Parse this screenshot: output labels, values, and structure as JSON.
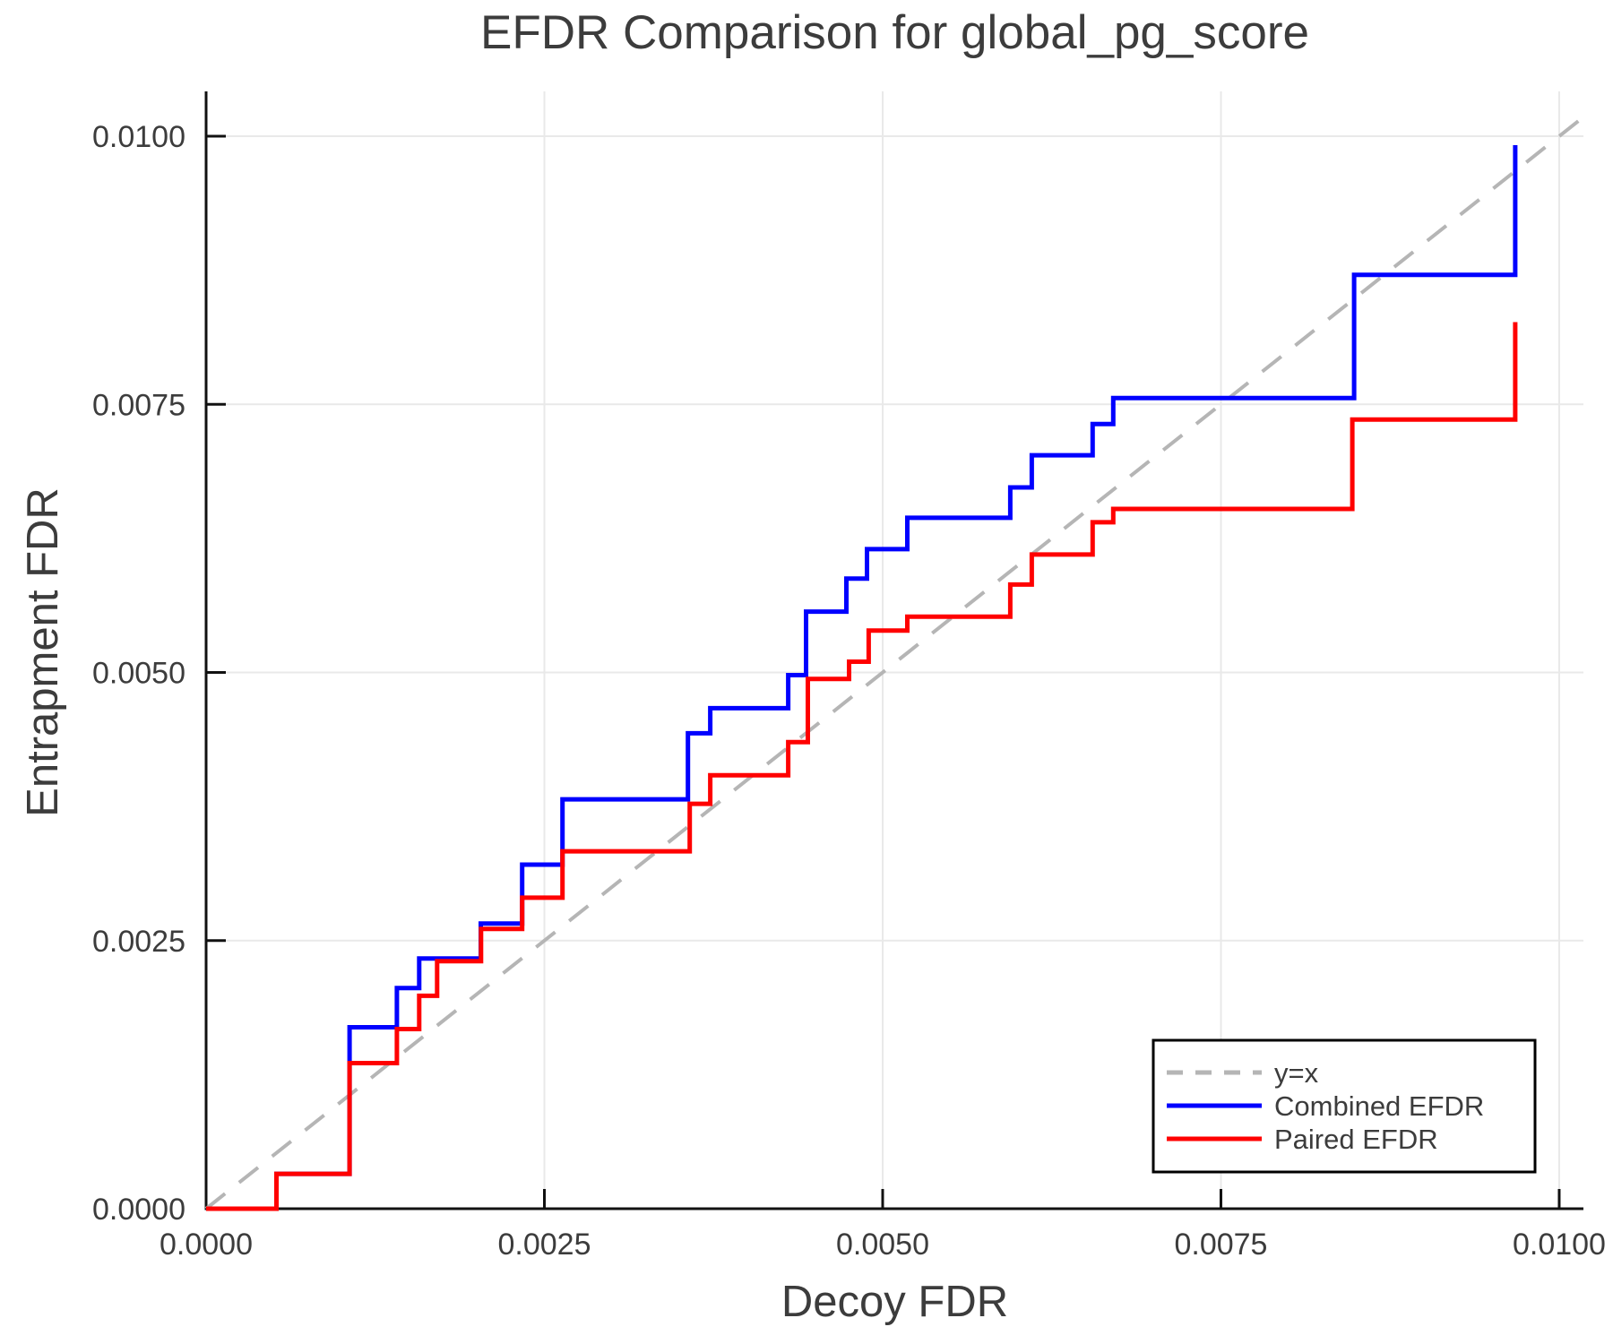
{
  "figure": {
    "title": "EFDR Comparison for global_pg_score",
    "xlabel": "Decoy FDR",
    "ylabel": "Entrapment FDR"
  },
  "chart_data": {
    "type": "line",
    "title": "EFDR Comparison for global_pg_score",
    "xlabel": "Decoy FDR",
    "ylabel": "Entrapment FDR",
    "xlim": [
      0,
      0.010179
    ],
    "ylim": [
      0,
      0.010418
    ],
    "grid": true,
    "legend_position": "bottom-right",
    "x_ticks": [
      0,
      0.0025,
      0.005,
      0.0075,
      0.01
    ],
    "x_tick_labels": [
      "0.0000",
      "0.0025",
      "0.0050",
      "0.0075",
      "0.0100"
    ],
    "y_ticks": [
      0,
      0.0025,
      0.005,
      0.0075,
      0.01
    ],
    "y_tick_labels": [
      "0.0000",
      "0.0025",
      "0.0050",
      "0.0075",
      "0.0100"
    ],
    "series": [
      {
        "name": "y=x",
        "style": "dashed",
        "color": "#b5b5b5",
        "points": [
          [
            0,
            0
          ],
          [
            0.010179,
            0.010179
          ]
        ]
      },
      {
        "name": "Combined EFDR",
        "style": "step",
        "color": "#0000ff",
        "events": [
          [
            0.00052,
            0.000325
          ],
          [
            0.00106,
            0.001692
          ],
          [
            0.00141,
            0.002058
          ],
          [
            0.001575,
            0.002333
          ],
          [
            0.00203,
            0.002658
          ],
          [
            0.002336,
            0.003208
          ],
          [
            0.002634,
            0.003817
          ],
          [
            0.003561,
            0.004433
          ],
          [
            0.003726,
            0.004667
          ],
          [
            0.004302,
            0.004975
          ],
          [
            0.004434,
            0.005567
          ],
          [
            0.004732,
            0.005875
          ],
          [
            0.004884,
            0.00615
          ],
          [
            0.005182,
            0.006442
          ],
          [
            0.005943,
            0.006725
          ],
          [
            0.006102,
            0.007025
          ],
          [
            0.006552,
            0.007317
          ],
          [
            0.006704,
            0.007558
          ],
          [
            0.008484,
            0.008708
          ],
          [
            0.009675,
            0.009917
          ]
        ]
      },
      {
        "name": "Paired EFDR",
        "style": "step",
        "color": "#ff0000",
        "events": [
          [
            0.00052,
            0.000325
          ],
          [
            0.00106,
            0.001358
          ],
          [
            0.00141,
            0.001675
          ],
          [
            0.001575,
            0.001985
          ],
          [
            0.001707,
            0.002308
          ],
          [
            0.002032,
            0.002608
          ],
          [
            0.002336,
            0.0029
          ],
          [
            0.002634,
            0.003333
          ],
          [
            0.003574,
            0.003775
          ],
          [
            0.003726,
            0.004042
          ],
          [
            0.004302,
            0.00435
          ],
          [
            0.004447,
            0.00494
          ],
          [
            0.004752,
            0.0051
          ],
          [
            0.004897,
            0.00539
          ],
          [
            0.005182,
            0.00552
          ],
          [
            0.005943,
            0.00582
          ],
          [
            0.006102,
            0.0061
          ],
          [
            0.006552,
            0.0064
          ],
          [
            0.006704,
            0.006525
          ],
          [
            0.008471,
            0.007358
          ],
          [
            0.009675,
            0.008267
          ]
        ]
      }
    ]
  },
  "style": {
    "grid_color": "#e9e9e9",
    "spine_color": "#111111",
    "text_color": "#3c3c3c",
    "legend_border": "#000000",
    "legend_bg": "#ffffff"
  }
}
